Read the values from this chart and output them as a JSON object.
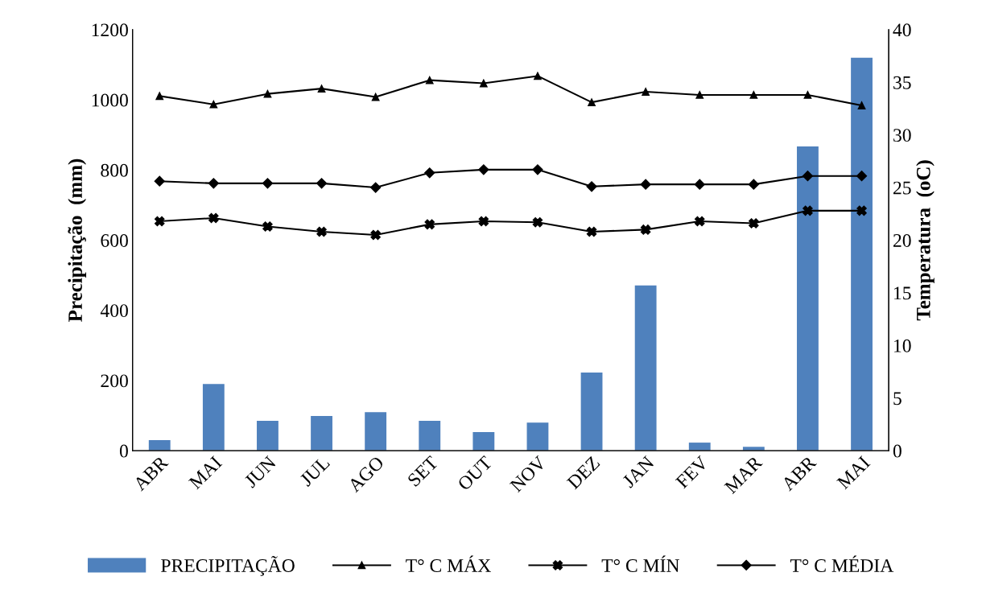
{
  "chart_data": {
    "type": "bar",
    "ylabel": "Precipitação  (mm)",
    "y2label": "Temperatura  (oC)",
    "categories": [
      "ABR",
      "MAI",
      "JUN",
      "JUL",
      "AGO",
      "SET",
      "OUT",
      "NOV",
      "DEZ",
      "JAN",
      "FEV",
      "MAR",
      "ABR",
      "MAI"
    ],
    "series": [
      {
        "name": "PRECIPITAÇÃO",
        "color": "#4f81bd",
        "values": [
          30,
          190,
          85,
          99,
          110,
          85,
          53,
          80,
          223,
          471,
          23,
          11,
          867,
          1120
        ]
      },
      {
        "name": "T° C MÁX",
        "type": "line",
        "axis": "y2",
        "color": "#000000",
        "marker": "triangle",
        "values": [
          33.7,
          32.9,
          33.9,
          34.4,
          33.6,
          35.2,
          34.9,
          35.6,
          33.1,
          34.1,
          33.8,
          33.8,
          33.8,
          32.8
        ]
      },
      {
        "name": "T° C MÍN",
        "type": "line",
        "axis": "y2",
        "color": "#000000",
        "marker": "cross",
        "values": [
          21.8,
          22.1,
          21.3,
          20.8,
          20.5,
          21.5,
          21.8,
          21.7,
          20.8,
          21.0,
          21.8,
          21.6,
          22.8,
          22.8
        ]
      },
      {
        "name": "T° C MÉDIA",
        "type": "line",
        "axis": "y2",
        "color": "#000000",
        "marker": "diamond",
        "values": [
          25.6,
          25.4,
          25.4,
          25.4,
          25.0,
          26.4,
          26.7,
          26.7,
          25.1,
          25.3,
          25.3,
          25.3,
          26.1,
          26.1
        ]
      }
    ],
    "ylim": [
      0,
      1200
    ],
    "yticks": [
      0,
      200,
      400,
      600,
      800,
      1000,
      1200
    ],
    "y2lim": [
      0,
      40
    ],
    "y2ticks": [
      0,
      5,
      10,
      15,
      20,
      25,
      30,
      35,
      40
    ],
    "grid": false,
    "legend": "bottom"
  }
}
